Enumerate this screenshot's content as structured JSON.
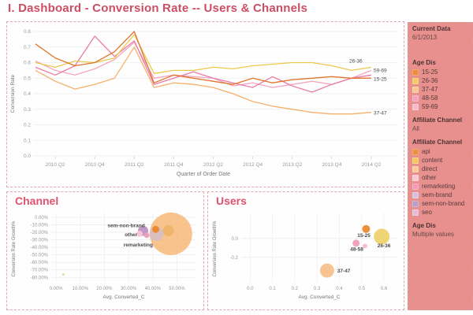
{
  "page": {
    "title": "I. Dashboard - Conversion Rate -- Users & Channels",
    "accent_color": "#cb4e63",
    "sidebar_color": "#e8908e"
  },
  "sidebar": {
    "current_data": {
      "label": "Current Data",
      "value": "6/1/2013"
    },
    "age_legend": {
      "label": "Age Dis",
      "items": [
        {
          "label": "15-25",
          "color": "#ee8d3b"
        },
        {
          "label": "26-36",
          "color": "#f0cd60"
        },
        {
          "label": "37-47",
          "color": "#f7c896"
        },
        {
          "label": "48-58",
          "color": "#f2a3bd"
        },
        {
          "label": "59-69",
          "color": "#f6bccb"
        }
      ]
    },
    "affiliate_filter": {
      "label": "Affiliate Channel",
      "value": "All"
    },
    "affiliate_legend": {
      "label": "Affiliate Channel",
      "items": [
        {
          "label": "api",
          "color": "#ee913f"
        },
        {
          "label": "content",
          "color": "#f1ca5f"
        },
        {
          "label": "direct",
          "color": "#f8cb98"
        },
        {
          "label": "other",
          "color": "#fac9d6"
        },
        {
          "label": "remarketing",
          "color": "#f19cb9"
        },
        {
          "label": "sem-brand",
          "color": "#d9c0de"
        },
        {
          "label": "sem-non-brand",
          "color": "#b5a0cc"
        },
        {
          "label": "seo",
          "color": "#e6bcd9"
        }
      ]
    },
    "age_filter": {
      "label": "Age Dis",
      "value": "Multiple values"
    }
  },
  "chart_data": [
    {
      "type": "line",
      "title": "",
      "xlabel": "Quarter of Order Date",
      "ylabel": "Conversion Rate",
      "x": [
        "2010 Q1",
        "2010 Q2",
        "2010 Q3",
        "2010 Q4",
        "2011 Q1",
        "2011 Q2",
        "2011 Q3",
        "2011 Q4",
        "2012 Q1",
        "2012 Q2",
        "2012 Q3",
        "2012 Q4",
        "2013 Q1",
        "2013 Q2",
        "2013 Q3",
        "2013 Q4",
        "2014 Q1",
        "2014 Q2"
      ],
      "labeled_ticks": [
        1,
        3,
        5,
        7,
        9,
        11,
        13,
        15,
        17
      ],
      "ylim": [
        0,
        0.8
      ],
      "yticks": [
        0,
        0.1,
        0.2,
        0.3,
        0.4,
        0.5,
        0.6,
        0.7,
        0.8
      ],
      "grid": true,
      "legend_position": "right-sidebar",
      "series": [
        {
          "name": "15-25",
          "color": "#e0752c",
          "values": [
            0.72,
            0.63,
            0.58,
            0.6,
            0.67,
            0.8,
            0.47,
            0.52,
            0.5,
            0.48,
            0.46,
            0.5,
            0.47,
            0.49,
            0.5,
            0.51,
            0.5,
            0.5
          ],
          "end_label": {
            "dx": 3,
            "dy": 3
          }
        },
        {
          "name": "26-36",
          "color": "#eac94e",
          "values": [
            0.6,
            0.57,
            0.61,
            0.6,
            0.63,
            0.78,
            0.53,
            0.55,
            0.55,
            0.57,
            0.56,
            0.58,
            0.59,
            0.6,
            0.6,
            0.58,
            0.55,
            0.57
          ],
          "end_label": {
            "dx": -28,
            "dy": -6
          }
        },
        {
          "name": "37-47",
          "color": "#f5b06b",
          "values": [
            0.55,
            0.48,
            0.43,
            0.46,
            0.5,
            0.7,
            0.44,
            0.47,
            0.46,
            0.44,
            0.4,
            0.35,
            0.32,
            0.3,
            0.28,
            0.27,
            0.27,
            0.28
          ],
          "end_label": {
            "dx": 3,
            "dy": 3
          }
        },
        {
          "name": "48-58",
          "color": "#e87ca8",
          "values": [
            0.57,
            0.52,
            0.58,
            0.77,
            0.64,
            0.74,
            0.46,
            0.5,
            0.54,
            0.5,
            0.47,
            0.44,
            0.51,
            0.45,
            0.41,
            0.46,
            0.5,
            0.52
          ]
        },
        {
          "name": "59-69",
          "color": "#f2a6c0",
          "values": [
            0.61,
            0.55,
            0.52,
            0.56,
            0.62,
            0.73,
            0.5,
            0.52,
            0.51,
            0.5,
            0.45,
            0.47,
            0.44,
            0.46,
            0.48,
            0.46,
            0.5,
            0.55
          ],
          "end_label": {
            "dx": 3,
            "dy": 2
          }
        }
      ]
    },
    {
      "type": "bubble",
      "title": "Channel",
      "xlabel": "Avg. Converted_C",
      "ylabel": "Conversion Rate Growth%",
      "xlim": [
        -2,
        58
      ],
      "ylim": [
        2,
        -86
      ],
      "grid": true,
      "xticks": [
        {
          "v": 0,
          "label": "0.00%"
        },
        {
          "v": 10,
          "label": "10.00%"
        },
        {
          "v": 20,
          "label": "20.00%"
        },
        {
          "v": 30,
          "label": "30.00%"
        },
        {
          "v": 40,
          "label": "40.00%"
        },
        {
          "v": 50,
          "label": "50.00%"
        }
      ],
      "yticks": [
        {
          "v": 0,
          "label": "0.00%"
        },
        {
          "v": -10,
          "label": "-10.00%"
        },
        {
          "v": -20,
          "label": "-20.00%"
        },
        {
          "v": -30,
          "label": "-30.00%"
        },
        {
          "v": -40,
          "label": "-40.00%"
        },
        {
          "v": -50,
          "label": "-50.00%"
        },
        {
          "v": -60,
          "label": "-60.00%"
        },
        {
          "v": -70,
          "label": "-70.00%"
        },
        {
          "v": -80,
          "label": "-80.00%"
        }
      ],
      "points": [
        {
          "name": "direct",
          "x": 47.5,
          "y": -22,
          "r": 27,
          "color": "#f8b471",
          "opacity": 0.8
        },
        {
          "name": "content",
          "x": 46.5,
          "y": -18,
          "r": 7,
          "color": "#e9a94e",
          "opacity": 0.55
        },
        {
          "name": "sem-brand",
          "x": 41.5,
          "y": -22,
          "r": 9,
          "color": "#cbbfd4",
          "opacity": 0.7
        },
        {
          "name": "api",
          "x": 41.2,
          "y": -16,
          "r": 4.5,
          "color": "#ec8b33",
          "opacity": 1
        },
        {
          "name": "sem-non-brand",
          "x": 36,
          "y": -18,
          "r": 6.5,
          "color": "#bd93c4",
          "opacity": 0.95
        },
        {
          "name": "remarketing",
          "x": 37.5,
          "y": -24,
          "r": 3.5,
          "color": "#ef9cba",
          "opacity": 0.95
        },
        {
          "name": "other",
          "x": 34.5,
          "y": -22,
          "r": 4,
          "color": "#f8c6d8",
          "opacity": 0.95
        },
        {
          "name": "seo",
          "x": 3,
          "y": -76,
          "r": 1.5,
          "color": "#e5d9a2",
          "opacity": 1
        }
      ],
      "labels": [
        {
          "text": "sem-non-brand",
          "x": 29,
          "y": -11
        },
        {
          "text": "other",
          "x": 31,
          "y": -23
        },
        {
          "text": "remarketing",
          "x": 34,
          "y": -37
        }
      ]
    },
    {
      "type": "bubble",
      "title": "Users",
      "xlabel": "Avg. Converted_C",
      "ylabel": "Conversion Rate Growth%",
      "xlim": [
        -0.04,
        0.66
      ],
      "ylim": [
        0.24,
        -0.46
      ],
      "grid": true,
      "xticks": [
        {
          "v": 0.0,
          "label": "0.0"
        },
        {
          "v": 0.1,
          "label": "0.1"
        },
        {
          "v": 0.2,
          "label": "0.2"
        },
        {
          "v": 0.3,
          "label": "0.3"
        },
        {
          "v": 0.4,
          "label": "0.4"
        },
        {
          "v": 0.5,
          "label": "0.5"
        },
        {
          "v": 0.6,
          "label": "0.6"
        }
      ],
      "yticks": [
        {
          "v": 0.0,
          "label": "0.0"
        },
        {
          "v": -0.2,
          "label": "-0.2"
        }
      ],
      "points": [
        {
          "name": "26-36",
          "x": 0.59,
          "y": 0.02,
          "r": 10,
          "color": "#ecd066",
          "opacity": 0.9
        },
        {
          "name": "37-47",
          "x": 0.345,
          "y": -0.34,
          "r": 9,
          "color": "#f7bd86",
          "opacity": 0.9
        },
        {
          "name": "15-25",
          "x": 0.52,
          "y": 0.1,
          "r": 5,
          "color": "#ec8b33",
          "opacity": 0.95
        },
        {
          "name": "48-58",
          "x": 0.475,
          "y": -0.05,
          "r": 4.5,
          "color": "#ef9dbd",
          "opacity": 0.95
        },
        {
          "name": "59-69",
          "x": 0.515,
          "y": -0.08,
          "r": 3,
          "color": "#f6bacc",
          "opacity": 0.95
        }
      ],
      "labels": [
        {
          "text": "15-25",
          "x": 0.51,
          "y": 0.03
        },
        {
          "text": "26-36",
          "x": 0.6,
          "y": -0.075
        },
        {
          "text": "48-58",
          "x": 0.478,
          "y": -0.115
        },
        {
          "text": "37-47",
          "x": 0.42,
          "y": -0.345
        }
      ]
    }
  ]
}
